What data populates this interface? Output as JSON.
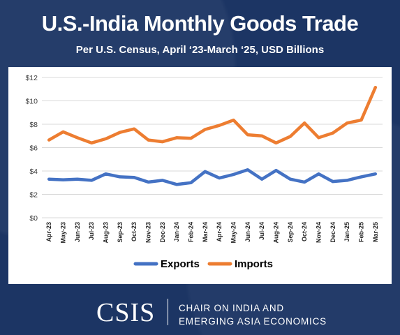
{
  "header": {
    "title": "U.S.-India Monthly Goods Trade",
    "subtitle": "Per U.S. Census, April ‘23-March ‘25, USD Billions"
  },
  "footer": {
    "logo": "CSIS",
    "chair_line1": "CHAIR ON INDIA AND",
    "chair_line2": "EMERGING ASIA ECONOMICS"
  },
  "chart_data": {
    "type": "line",
    "title": "U.S.-India Monthly Goods Trade",
    "subtitle": "Per U.S. Census, April ‘23-March ‘25, USD Billions",
    "ylim": [
      0,
      12
    ],
    "yticks": [
      0,
      2,
      4,
      6,
      8,
      10,
      12
    ],
    "ytick_labels": [
      "$0",
      "$2",
      "$4",
      "$6",
      "$8",
      "$10",
      "$12"
    ],
    "grid": true,
    "legend_position": "bottom",
    "categories": [
      "Apr-23",
      "May-23",
      "Jun-23",
      "Jul-23",
      "Aug-23",
      "Sep-23",
      "Oct-23",
      "Nov-23",
      "Dec-23",
      "Jan-24",
      "Feb-24",
      "Mar-24",
      "Apr-24",
      "May-24",
      "Jun-24",
      "Jul-24",
      "Aug-24",
      "Sep-24",
      "Oct-24",
      "Nov-24",
      "Dec-24",
      "Jan-25",
      "Feb-25",
      "Mar-25"
    ],
    "series": [
      {
        "name": "Exports",
        "color": "#4472c4",
        "values": [
          3.3,
          3.25,
          3.3,
          3.2,
          3.75,
          3.5,
          3.45,
          3.05,
          3.2,
          2.85,
          3.0,
          3.95,
          3.4,
          3.7,
          4.1,
          3.3,
          4.05,
          3.3,
          3.05,
          3.75,
          3.1,
          3.2,
          3.5,
          3.75
        ]
      },
      {
        "name": "Imports",
        "color": "#ed7d31",
        "values": [
          6.65,
          7.35,
          6.85,
          6.4,
          6.75,
          7.3,
          7.6,
          6.65,
          6.5,
          6.85,
          6.8,
          7.55,
          7.9,
          8.35,
          7.1,
          7.0,
          6.4,
          6.95,
          8.1,
          6.85,
          7.25,
          8.1,
          8.35,
          11.15
        ]
      }
    ]
  }
}
